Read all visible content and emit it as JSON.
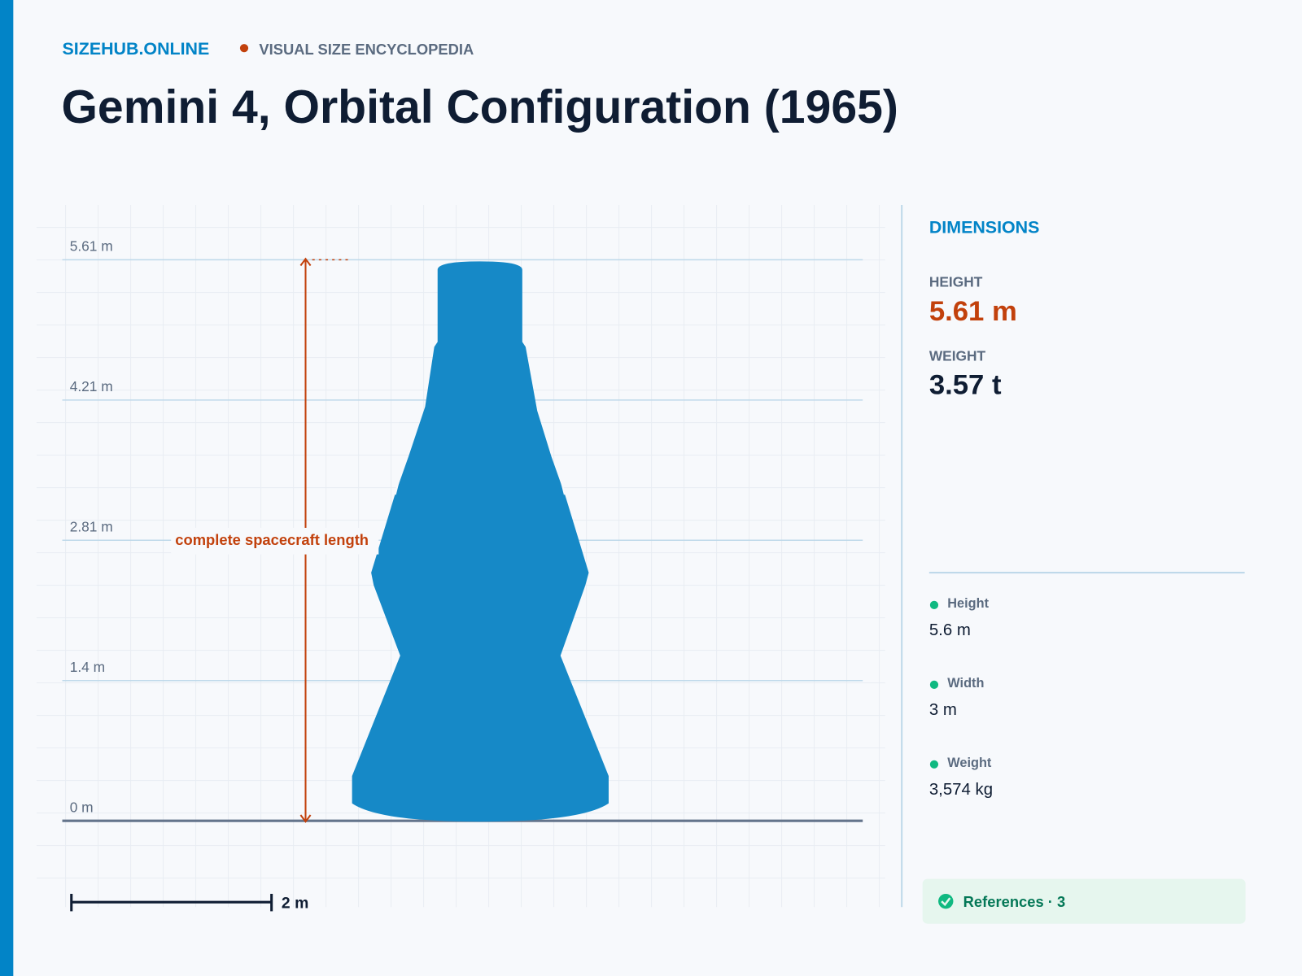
{
  "header": {
    "site": "SIZEHUB.ONLINE",
    "tagline": "VISUAL SIZE ENCYCLOPEDIA",
    "title": "Gemini 4, Orbital Configuration (1965)"
  },
  "scale": {
    "ticks": [
      "5.61 m",
      "4.21 m",
      "2.81 m",
      "1.4 m",
      "0 m"
    ],
    "annotation": "complete spacecraft length",
    "bar_label": "2 m"
  },
  "sidebar": {
    "heading": "DIMENSIONS",
    "stats": [
      {
        "label": "HEIGHT",
        "value": "5.61 m"
      },
      {
        "label": "WEIGHT",
        "value": "3.57 t"
      }
    ],
    "facts": [
      {
        "label": "Height",
        "value": "5.6 m"
      },
      {
        "label": "Width",
        "value": "3 m"
      },
      {
        "label": "Weight",
        "value": "3,574 kg"
      }
    ],
    "references": "References · 3"
  }
}
